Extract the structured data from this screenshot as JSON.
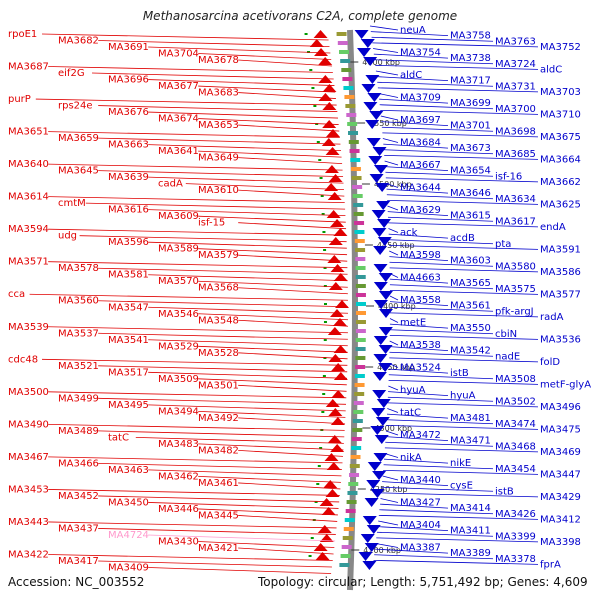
{
  "title": "Methanosarcina acetivorans C2A, complete genome",
  "footer": {
    "accession": "Accession: NC_003552",
    "summary": "Topology: circular; Length: 5,751,492 bp; Genes: 4,609"
  },
  "colors": {
    "left": "#e00000",
    "right": "#0000cc",
    "pink": "#ff99cc",
    "backbone": "#888888"
  },
  "ticks": [
    "4600 kbp",
    "4550 kbp",
    "4500 kbp",
    "4450 kbp",
    "4400 kbp",
    "4350 kbp",
    "4300 kbp",
    "4250 kbp",
    "4200 kbp"
  ],
  "left_labels": [
    {
      "t": "rpoE1"
    },
    {
      "t": "MA3682"
    },
    {
      "t": "MA3691"
    },
    {
      "t": "MA3704"
    },
    {
      "t": "MA3678"
    },
    {
      "t": "MA3687"
    },
    {
      "t": "eif2G"
    },
    {
      "t": "MA3696"
    },
    {
      "t": "MA3677"
    },
    {
      "t": "MA3683"
    },
    {
      "t": "purP"
    },
    {
      "t": "rps24e"
    },
    {
      "t": "MA3676"
    },
    {
      "t": "MA3674"
    },
    {
      "t": "MA3653"
    },
    {
      "t": "MA3651"
    },
    {
      "t": "MA3659"
    },
    {
      "t": "MA3663"
    },
    {
      "t": "MA3641"
    },
    {
      "t": "MA3649"
    },
    {
      "t": "MA3640"
    },
    {
      "t": "MA3645"
    },
    {
      "t": "MA3639"
    },
    {
      "t": "cadA"
    },
    {
      "t": "MA3610"
    },
    {
      "t": "MA3614"
    },
    {
      "t": "cmtM"
    },
    {
      "t": "MA3616"
    },
    {
      "t": "MA3609"
    },
    {
      "t": "isf-15"
    },
    {
      "t": "MA3594"
    },
    {
      "t": "udg"
    },
    {
      "t": "MA3596"
    },
    {
      "t": "MA3589"
    },
    {
      "t": "MA3579"
    },
    {
      "t": "MA3571"
    },
    {
      "t": "MA3578"
    },
    {
      "t": "MA3581"
    },
    {
      "t": "MA3570"
    },
    {
      "t": "MA3568"
    },
    {
      "t": "cca"
    },
    {
      "t": "MA3560"
    },
    {
      "t": "MA3547"
    },
    {
      "t": "MA3546"
    },
    {
      "t": "MA3548"
    },
    {
      "t": "MA3539"
    },
    {
      "t": "MA3537"
    },
    {
      "t": "MA3541"
    },
    {
      "t": "MA3529"
    },
    {
      "t": "MA3528"
    },
    {
      "t": "cdc48"
    },
    {
      "t": "MA3521"
    },
    {
      "t": "MA3517"
    },
    {
      "t": "MA3509"
    },
    {
      "t": "MA3501"
    },
    {
      "t": "MA3500"
    },
    {
      "t": "MA3499"
    },
    {
      "t": "MA3495"
    },
    {
      "t": "MA3494"
    },
    {
      "t": "MA3492"
    },
    {
      "t": "MA3490"
    },
    {
      "t": "MA3489"
    },
    {
      "t": "tatC"
    },
    {
      "t": "MA3483"
    },
    {
      "t": "MA3482"
    },
    {
      "t": "MA3467"
    },
    {
      "t": "MA3466"
    },
    {
      "t": "MA3463"
    },
    {
      "t": "MA3462"
    },
    {
      "t": "MA3461"
    },
    {
      "t": "MA3453"
    },
    {
      "t": "MA3452"
    },
    {
      "t": "MA3450"
    },
    {
      "t": "MA3446"
    },
    {
      "t": "MA3445"
    },
    {
      "t": "MA3443"
    },
    {
      "t": "MA3437"
    },
    {
      "t": "MA4724",
      "pink": true
    },
    {
      "t": "MA3430"
    },
    {
      "t": "MA3421"
    },
    {
      "t": "MA3422"
    },
    {
      "t": "MA3417"
    },
    {
      "t": "MA3409"
    }
  ],
  "right_labels": [
    "neuA",
    "MA3758",
    "MA3763",
    "MA3752",
    "MA3754",
    "MA3738",
    "MA3724",
    "aldC",
    "aldC",
    "MA3717",
    "MA3731",
    "MA3703",
    "MA3709",
    "MA3699",
    "MA3700",
    "MA3710",
    "MA3697",
    "MA3701",
    "MA3698",
    "MA3675",
    "MA3684",
    "MA3673",
    "MA3685",
    "MA3664",
    "MA3667",
    "MA3654",
    "isf-16",
    "MA3662",
    "MA3644",
    "MA3646",
    "MA3634",
    "MA3625",
    "MA3629",
    "MA3615",
    "MA3617",
    "endA",
    "ack",
    "acdB",
    "pta",
    "MA3591",
    "MA3598",
    "MA3603",
    "MA3580",
    "MA3586",
    "MA4663",
    "MA3565",
    "MA3575",
    "MA3577",
    "MA3558",
    "MA3561",
    "pfk-argJ",
    "radA",
    "metE",
    "MA3550",
    "cbiN",
    "MA3536",
    "MA3538",
    "MA3542",
    "nadE",
    "folD",
    "MA3524",
    "istB",
    "MA3508",
    "metF-glyA",
    "hyuA",
    "hyuA",
    "MA3502",
    "MA3496",
    "tatC",
    "MA3481",
    "MA3474",
    "MA3475",
    "MA3472",
    "MA3471",
    "MA3468",
    "MA3469",
    "nikA",
    "nikE",
    "MA3454",
    "MA3447",
    "MA3440",
    "cysE",
    "istB",
    "MA3429",
    "MA3427",
    "MA3414",
    "MA3426",
    "MA3412",
    "MA3404",
    "MA3411",
    "MA3399",
    "MA3398",
    "MA3387",
    "MA3389",
    "MA3378",
    "fprA"
  ]
}
